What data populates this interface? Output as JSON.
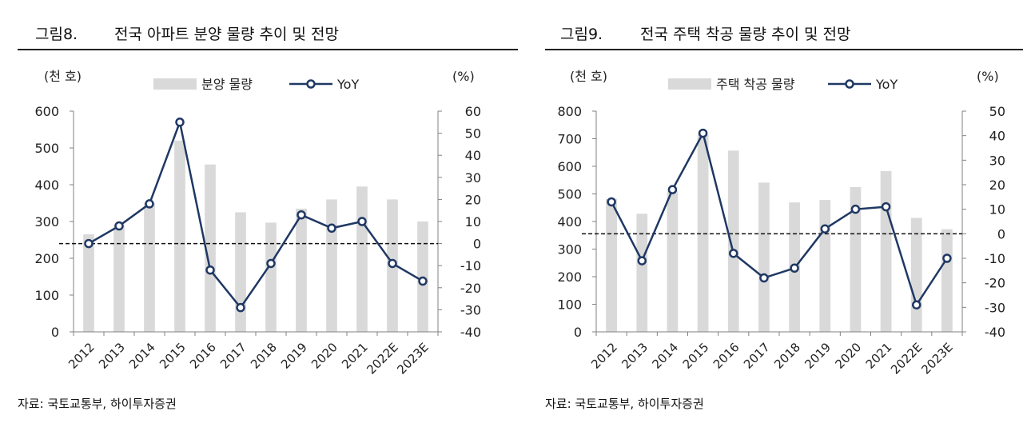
{
  "charts": [
    {
      "fig_label": "그림8.",
      "title": "전국 아파트 분양 물량 추이 및 전망",
      "source": "자료: 국토교통부, 하이투자증권",
      "chart_data": {
        "type": "bar+line",
        "categories": [
          "2012",
          "2013",
          "2014",
          "2015",
          "2016",
          "2017",
          "2018",
          "2019",
          "2020",
          "2021",
          "2022E",
          "2023E"
        ],
        "series": [
          {
            "name": "분양 물량",
            "kind": "bar",
            "axis": "left",
            "values": [
              265,
              290,
              350,
              520,
              455,
              325,
              297,
              335,
              360,
              395,
              360,
              300
            ]
          },
          {
            "name": "YoY",
            "kind": "line",
            "axis": "right",
            "values": [
              0,
              8,
              18,
              55,
              -12,
              -29,
              -9,
              13,
              7,
              10,
              -9,
              -17
            ]
          }
        ],
        "left_axis": {
          "label": "(천 호)",
          "min": 0,
          "max": 600,
          "ticks": [
            0,
            100,
            200,
            300,
            400,
            500,
            600
          ]
        },
        "right_axis": {
          "label": "(%)",
          "min": -40,
          "max": 60,
          "ticks": [
            -40,
            -30,
            -20,
            -10,
            0,
            10,
            20,
            30,
            40,
            50,
            60
          ]
        },
        "reference_line": 0,
        "legend": [
          "분양 물량",
          "YoY"
        ]
      }
    },
    {
      "fig_label": "그림9.",
      "title": "전국 주택 착공 물량 추이 및 전망",
      "source": "자료: 국토교통부, 하이투자증권",
      "chart_data": {
        "type": "bar+line",
        "categories": [
          "2012",
          "2013",
          "2014",
          "2015",
          "2016",
          "2017",
          "2018",
          "2019",
          "2020",
          "2021",
          "2022E",
          "2023E"
        ],
        "series": [
          {
            "name": "주택 착공 물량",
            "kind": "bar",
            "axis": "left",
            "values": [
              482,
              428,
              510,
              715,
              657,
              541,
              469,
              478,
              525,
              583,
              413,
              372
            ]
          },
          {
            "name": "YoY",
            "kind": "line",
            "axis": "right",
            "values": [
              13,
              -11,
              18,
              41,
              -8,
              -18,
              -14,
              2,
              10,
              11,
              -29,
              -10
            ]
          }
        ],
        "left_axis": {
          "label": "(천 호)",
          "min": 0,
          "max": 800,
          "ticks": [
            0,
            100,
            200,
            300,
            400,
            500,
            600,
            700,
            800
          ]
        },
        "right_axis": {
          "label": "(%)",
          "min": -40,
          "max": 50,
          "ticks": [
            -40,
            -30,
            -20,
            -10,
            0,
            10,
            20,
            30,
            40,
            50
          ]
        },
        "reference_line": 0,
        "legend": [
          "주택 착공 물량",
          "YoY"
        ]
      }
    }
  ],
  "colors": {
    "bar": "#d9d9d9",
    "line": "#1f3864",
    "axis": "#808080",
    "text": "#222222",
    "marker_fill": "#ffffff"
  }
}
